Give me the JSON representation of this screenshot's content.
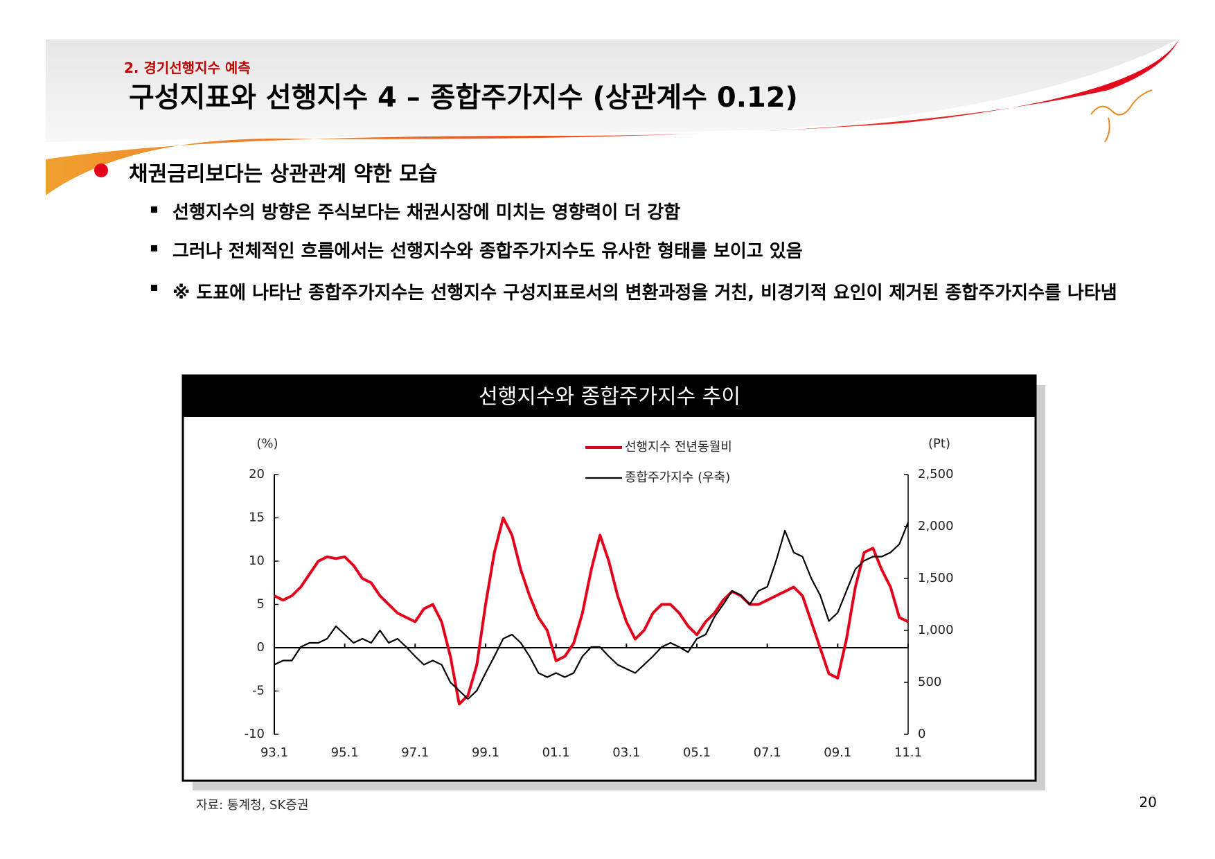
{
  "header": {
    "section": "2. 경기선행지수 예측",
    "title": "구성지표와 선행지수 4 – 종합주가지수 (상관계수 0.12)"
  },
  "bullet": "채권금리보다는 상관관계 약한 모습",
  "sub_bullets": [
    "선행지수의 방향은 주식보다는 채권시장에 미치는 영향력이 더 강함",
    "그러나 전체적인 흐름에서는 선행지수와 종합주가지수도 유사한 형태를 보이고 있음",
    "※ 도표에 나타난 종합주가지수는 선행지수 구성지표로서의 변환과정을 거친, 비경기적 요인이 제거된 종합주가지수를 나타냄"
  ],
  "chart_data": {
    "type": "line",
    "title": "선행지수와 종합주가지수 추이",
    "ylabel": "(%)",
    "y2label": "(Pt)",
    "categories": [
      "93.1",
      null,
      null,
      null,
      null,
      null,
      null,
      null,
      "95.1",
      null,
      null,
      null,
      null,
      null,
      null,
      null,
      "97.1",
      null,
      null,
      null,
      null,
      null,
      null,
      null,
      "99.1",
      null,
      null,
      null,
      null,
      null,
      null,
      null,
      "01.1",
      null,
      null,
      null,
      null,
      null,
      null,
      null,
      "03.1",
      null,
      null,
      null,
      null,
      null,
      null,
      null,
      "05.1",
      null,
      null,
      null,
      null,
      null,
      null,
      null,
      "07.1",
      null,
      null,
      null,
      null,
      null,
      null,
      null,
      "09.1",
      null,
      null,
      null,
      null,
      null,
      null,
      null,
      "11.1"
    ],
    "series": [
      {
        "name": "선행지수 전년동월비",
        "color": "#e3001b",
        "values": [
          6,
          5.5,
          6,
          7,
          8.5,
          10,
          10.5,
          10.3,
          10.5,
          9.5,
          8,
          7.5,
          6,
          5,
          4,
          3.5,
          3,
          4.5,
          5,
          3,
          -1,
          -6.5,
          -5.5,
          -2,
          5,
          11,
          15,
          13,
          9,
          6,
          3.5,
          2,
          -1.5,
          -1,
          0.5,
          4,
          9,
          13,
          10,
          6,
          3,
          1,
          2,
          4,
          5,
          5,
          4,
          2.5,
          1.5,
          3,
          4,
          5.5,
          6.5,
          6,
          5,
          5,
          5.5,
          6,
          6.5,
          7,
          6,
          3,
          0,
          -3,
          -3.5,
          1,
          7,
          11,
          11.5,
          9,
          7,
          3.5,
          3
        ]
      },
      {
        "name": "종합주가지수 (우축)",
        "color": "#000000",
        "axis": "y2",
        "values": [
          670,
          710,
          710,
          840,
          880,
          880,
          920,
          1040,
          960,
          880,
          920,
          880,
          1000,
          880,
          920,
          840,
          750,
          670,
          710,
          670,
          500,
          420,
          340,
          420,
          590,
          750,
          920,
          960,
          880,
          750,
          590,
          550,
          590,
          550,
          590,
          750,
          840,
          840,
          750,
          670,
          630,
          590,
          670,
          750,
          840,
          880,
          840,
          790,
          920,
          960,
          1130,
          1250,
          1380,
          1340,
          1250,
          1380,
          1420,
          1670,
          1960,
          1750,
          1710,
          1500,
          1340,
          1090,
          1170,
          1380,
          1590,
          1670,
          1710,
          1710,
          1750,
          1830,
          2040
        ]
      }
    ],
    "ylim": [
      -10,
      20
    ],
    "yticks": [
      -10,
      -5,
      0,
      5,
      10,
      15,
      20
    ],
    "y2lim": [
      0,
      2500
    ],
    "y2ticks": [
      0,
      500,
      {
        "value": 1000,
        "label": "1,000"
      },
      {
        "value": 1500,
        "label": "1,500"
      },
      {
        "value": 2000,
        "label": "2,000"
      },
      {
        "value": 2500,
        "label": "2,500"
      }
    ]
  },
  "source": "자료: 통계청, SK증권",
  "page_number": "20"
}
